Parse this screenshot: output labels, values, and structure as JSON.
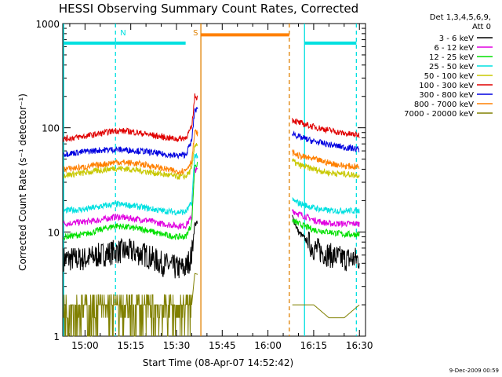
{
  "chart_data": {
    "type": "line",
    "title": "HESSI Observing Summary Count Rates, Corrected",
    "xlabel": "Start Time (08-Apr-07 14:52:42)",
    "ylabel": "Corrected Count Rate (s⁻¹ detector⁻¹)",
    "y_scale": "log",
    "ylim": [
      1,
      1000
    ],
    "xlim": [
      "14:52:42",
      "16:32:00"
    ],
    "x_ticks": [
      "15:00",
      "15:15",
      "15:30",
      "15:45",
      "16:00",
      "16:15",
      "16:30"
    ],
    "y_ticks": [
      "1",
      "10",
      "100",
      "1000"
    ],
    "legend_header": [
      "Det 1,3,4,5,6,9,",
      "Att 0"
    ],
    "legend_position": "outside-right",
    "footer": "9-Dec-2009 00:59",
    "data_gap": {
      "start": "15:37",
      "end": "16:07"
    },
    "series": [
      {
        "name": "3 - 6 keV",
        "color": "#000000",
        "x": [
          "14:53",
          "15:00",
          "15:05",
          "15:10",
          "15:15",
          "15:20",
          "15:25",
          "15:30",
          "15:33",
          "15:35",
          "15:36",
          "16:08",
          "16:10",
          "16:15",
          "16:20",
          "16:25",
          "16:30"
        ],
        "values": [
          5.5,
          5.5,
          6,
          6.5,
          6.5,
          6,
          5,
          4.5,
          4.5,
          6,
          12,
          14,
          10,
          7,
          6,
          5.5,
          5.5
        ]
      },
      {
        "name": "6 - 12 keV",
        "color": "#e000e0",
        "x": [
          "14:53",
          "15:00",
          "15:05",
          "15:10",
          "15:15",
          "15:20",
          "15:25",
          "15:30",
          "15:33",
          "15:35",
          "15:36",
          "16:08",
          "16:10",
          "16:15",
          "16:20",
          "16:25",
          "16:30"
        ],
        "values": [
          12,
          12.5,
          13,
          14,
          13.5,
          13,
          12,
          11.5,
          11.5,
          14,
          40,
          16,
          15,
          13,
          12,
          12,
          12
        ]
      },
      {
        "name": "12 - 25 keV",
        "color": "#00e000",
        "x": [
          "14:53",
          "15:00",
          "15:05",
          "15:10",
          "15:15",
          "15:20",
          "15:25",
          "15:30",
          "15:33",
          "15:35",
          "15:36",
          "16:08",
          "16:10",
          "16:15",
          "16:20",
          "16:25",
          "16:30"
        ],
        "values": [
          9,
          9.5,
          10.5,
          11.5,
          11,
          10.5,
          9.5,
          9,
          9,
          12,
          45,
          13,
          12,
          10.5,
          10,
          9.5,
          9.5
        ]
      },
      {
        "name": "25 - 50 keV",
        "color": "#00e0e0",
        "x": [
          "14:53",
          "15:00",
          "15:05",
          "15:10",
          "15:15",
          "15:20",
          "15:25",
          "15:30",
          "15:33",
          "15:35",
          "15:36",
          "16:08",
          "16:10",
          "16:15",
          "16:20",
          "16:25",
          "16:30"
        ],
        "values": [
          16,
          16.5,
          17.5,
          18.5,
          18,
          17,
          16,
          15.5,
          15.5,
          19,
          55,
          20,
          19,
          17,
          16,
          16,
          16
        ]
      },
      {
        "name": "50 - 100 keV",
        "color": "#c8c800",
        "x": [
          "14:53",
          "15:00",
          "15:05",
          "15:10",
          "15:15",
          "15:20",
          "15:25",
          "15:30",
          "15:33",
          "15:35",
          "15:36",
          "16:08",
          "16:10",
          "16:15",
          "16:20",
          "16:25",
          "16:30"
        ],
        "values": [
          35,
          37,
          39,
          41,
          40,
          38,
          36,
          34,
          34,
          40,
          70,
          48,
          44,
          40,
          37,
          36,
          35
        ]
      },
      {
        "name": "100 - 300 keV",
        "color": "#e00000",
        "x": [
          "14:53",
          "15:00",
          "15:05",
          "15:10",
          "15:15",
          "15:20",
          "15:25",
          "15:30",
          "15:33",
          "15:35",
          "15:36",
          "16:08",
          "16:10",
          "16:15",
          "16:20",
          "16:25",
          "16:30"
        ],
        "values": [
          78,
          83,
          88,
          94,
          92,
          87,
          82,
          78,
          80,
          100,
          200,
          120,
          112,
          102,
          95,
          88,
          85
        ]
      },
      {
        "name": "300 - 800 keV",
        "color": "#0000e0",
        "x": [
          "14:53",
          "15:00",
          "15:05",
          "15:10",
          "15:15",
          "15:20",
          "15:25",
          "15:30",
          "15:33",
          "15:35",
          "15:36",
          "16:08",
          "16:10",
          "16:15",
          "16:20",
          "16:25",
          "16:30"
        ],
        "values": [
          56,
          59,
          61,
          62,
          61,
          59,
          56,
          54,
          55,
          75,
          150,
          90,
          82,
          74,
          69,
          65,
          62
        ]
      },
      {
        "name": "800 - 7000 keV",
        "color": "#ff8000",
        "x": [
          "14:53",
          "15:00",
          "15:05",
          "15:10",
          "15:15",
          "15:20",
          "15:25",
          "15:30",
          "15:33",
          "15:35",
          "15:36",
          "16:08",
          "16:10",
          "16:15",
          "16:20",
          "16:25",
          "16:30"
        ],
        "values": [
          40,
          42,
          44,
          47,
          46,
          44,
          41,
          38,
          39,
          48,
          90,
          58,
          54,
          50,
          46,
          43,
          42
        ]
      },
      {
        "name": "7000 - 20000 keV",
        "color": "#808000",
        "x": [
          "14:53",
          "15:00",
          "15:05",
          "15:10",
          "15:15",
          "15:20",
          "15:25",
          "15:30",
          "15:33",
          "15:35",
          "15:36",
          "16:08",
          "16:10",
          "16:15",
          "16:20",
          "16:25",
          "16:30"
        ],
        "values": [
          2,
          2,
          2,
          2,
          1.5,
          1,
          1.5,
          2,
          2,
          2,
          4,
          2,
          2,
          2,
          1.5,
          1.5,
          2
        ]
      }
    ],
    "markers": [
      {
        "label": "N",
        "color": "#00e0e0",
        "style": "dashed",
        "at": [
          "15:10",
          "16:29"
        ]
      },
      {
        "label": "",
        "color": "#00e0e0",
        "style": "solid",
        "at": [
          "14:53",
          "16:12"
        ]
      },
      {
        "label": "S",
        "color": "#e08000",
        "style": "solid",
        "at": [
          "15:38"
        ]
      },
      {
        "label": "",
        "color": "#e08000",
        "style": "dashed",
        "at": [
          "16:07"
        ]
      }
    ],
    "bars": [
      {
        "name": "night",
        "color": "#00e0e0",
        "y": 650,
        "ranges": [
          [
            "14:53",
            "15:10"
          ],
          [
            "15:10",
            "15:33"
          ],
          [
            "16:12",
            "16:29"
          ]
        ]
      },
      {
        "name": "saa",
        "color": "#ff8000",
        "y": 780,
        "ranges": [
          [
            "15:38",
            "16:07"
          ]
        ]
      }
    ]
  }
}
